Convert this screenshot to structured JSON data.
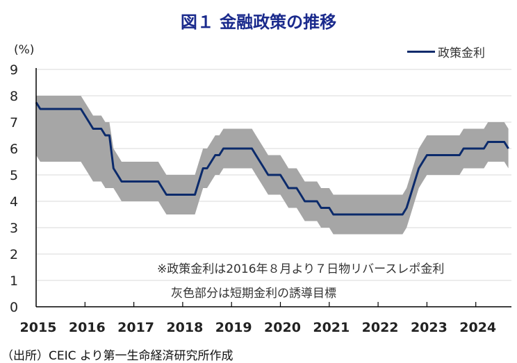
{
  "title": "図１ 金融政策の推移",
  "source": "（出所）CEIC より第一生命経済研究所作成",
  "chart_data": {
    "type": "line",
    "title": "図１ 金融政策の推移",
    "ylabel": "(%)",
    "xlabel": "",
    "ylim": [
      0,
      9
    ],
    "xlim": [
      2015,
      2024.67
    ],
    "yticks": [
      "0",
      "1",
      "2",
      "3",
      "4",
      "5",
      "6",
      "7",
      "8",
      "9"
    ],
    "xticks": [
      "2015",
      "2016",
      "2017",
      "2018",
      "2019",
      "2020",
      "2021",
      "2022",
      "2023",
      "2024"
    ],
    "grid": true,
    "legend_position": "top-right",
    "x_start": "2015-01",
    "frequency": "monthly",
    "series": [
      {
        "name": "政策金利",
        "color": "#0b2a6b",
        "values": [
          7.75,
          7.5,
          7.5,
          7.5,
          7.5,
          7.5,
          7.5,
          7.5,
          7.5,
          7.5,
          7.5,
          7.5,
          7.25,
          7,
          6.75,
          6.75,
          6.75,
          6.5,
          6.5,
          5.25,
          5,
          4.75,
          4.75,
          4.75,
          4.75,
          4.75,
          4.75,
          4.75,
          4.75,
          4.75,
          4.75,
          4.5,
          4.25,
          4.25,
          4.25,
          4.25,
          4.25,
          4.25,
          4.25,
          4.25,
          4.75,
          5.25,
          5.25,
          5.5,
          5.75,
          5.75,
          6,
          6,
          6,
          6,
          6,
          6,
          6,
          6,
          5.75,
          5.5,
          5.25,
          5,
          5,
          5,
          5,
          4.75,
          4.5,
          4.5,
          4.5,
          4.25,
          4,
          4,
          4,
          4,
          3.75,
          3.75,
          3.75,
          3.5,
          3.5,
          3.5,
          3.5,
          3.5,
          3.5,
          3.5,
          3.5,
          3.5,
          3.5,
          3.5,
          3.5,
          3.5,
          3.5,
          3.5,
          3.5,
          3.5,
          3.5,
          3.75,
          4.25,
          4.75,
          5.25,
          5.5,
          5.75,
          5.75,
          5.75,
          5.75,
          5.75,
          5.75,
          5.75,
          5.75,
          5.75,
          6,
          6,
          6,
          6,
          6,
          6,
          6.25,
          6.25,
          6.25,
          6.25,
          6.25,
          6
        ]
      },
      {
        "name": "短期金利の誘導目標 上限",
        "color": "#a6a6a6",
        "values": [
          8,
          8,
          8,
          8,
          8,
          8,
          8,
          8,
          8,
          8,
          8,
          8,
          7.75,
          7.5,
          7.25,
          7.25,
          7.25,
          7,
          7,
          6,
          5.75,
          5.5,
          5.5,
          5.5,
          5.5,
          5.5,
          5.5,
          5.5,
          5.5,
          5.5,
          5.5,
          5.25,
          5,
          5,
          5,
          5,
          5,
          5,
          5,
          5,
          5.5,
          6,
          6,
          6.25,
          6.5,
          6.5,
          6.75,
          6.75,
          6.75,
          6.75,
          6.75,
          6.75,
          6.75,
          6.75,
          6.5,
          6.25,
          6,
          5.75,
          5.75,
          5.75,
          5.75,
          5.5,
          5.25,
          5.25,
          5.25,
          5,
          4.75,
          4.75,
          4.75,
          4.75,
          4.5,
          4.5,
          4.5,
          4.25,
          4.25,
          4.25,
          4.25,
          4.25,
          4.25,
          4.25,
          4.25,
          4.25,
          4.25,
          4.25,
          4.25,
          4.25,
          4.25,
          4.25,
          4.25,
          4.25,
          4.25,
          4.5,
          5,
          5.5,
          6,
          6.25,
          6.5,
          6.5,
          6.5,
          6.5,
          6.5,
          6.5,
          6.5,
          6.5,
          6.5,
          6.75,
          6.75,
          6.75,
          6.75,
          6.75,
          6.75,
          7,
          7,
          7,
          7,
          7,
          6.75
        ]
      },
      {
        "name": "短期金利の誘導目標 下限",
        "color": "#a6a6a6",
        "values": [
          5.75,
          5.5,
          5.5,
          5.5,
          5.5,
          5.5,
          5.5,
          5.5,
          5.5,
          5.5,
          5.5,
          5.5,
          5.25,
          5,
          4.75,
          4.75,
          4.75,
          4.5,
          4.5,
          4.5,
          4.25,
          4,
          4,
          4,
          4,
          4,
          4,
          4,
          4,
          4,
          4,
          3.75,
          3.5,
          3.5,
          3.5,
          3.5,
          3.5,
          3.5,
          3.5,
          3.5,
          4,
          4.5,
          4.5,
          4.75,
          5,
          5,
          5.25,
          5.25,
          5.25,
          5.25,
          5.25,
          5.25,
          5.25,
          5.25,
          5,
          4.75,
          4.5,
          4.25,
          4.25,
          4.25,
          4.25,
          4,
          3.75,
          3.75,
          3.75,
          3.5,
          3.25,
          3.25,
          3.25,
          3.25,
          3,
          3,
          3,
          2.75,
          2.75,
          2.75,
          2.75,
          2.75,
          2.75,
          2.75,
          2.75,
          2.75,
          2.75,
          2.75,
          2.75,
          2.75,
          2.75,
          2.75,
          2.75,
          2.75,
          2.75,
          3,
          3.5,
          4,
          4.5,
          4.75,
          5,
          5,
          5,
          5,
          5,
          5,
          5,
          5,
          5,
          5.25,
          5.25,
          5.25,
          5.25,
          5.25,
          5.25,
          5.5,
          5.5,
          5.5,
          5.5,
          5.5,
          5.25
        ]
      }
    ],
    "legend": [
      "政策金利"
    ],
    "annotations": [
      "※政策金利は2016年８月より７日物リバースレポ金利",
      "灰色部分は短期金利の誘導目標"
    ]
  }
}
